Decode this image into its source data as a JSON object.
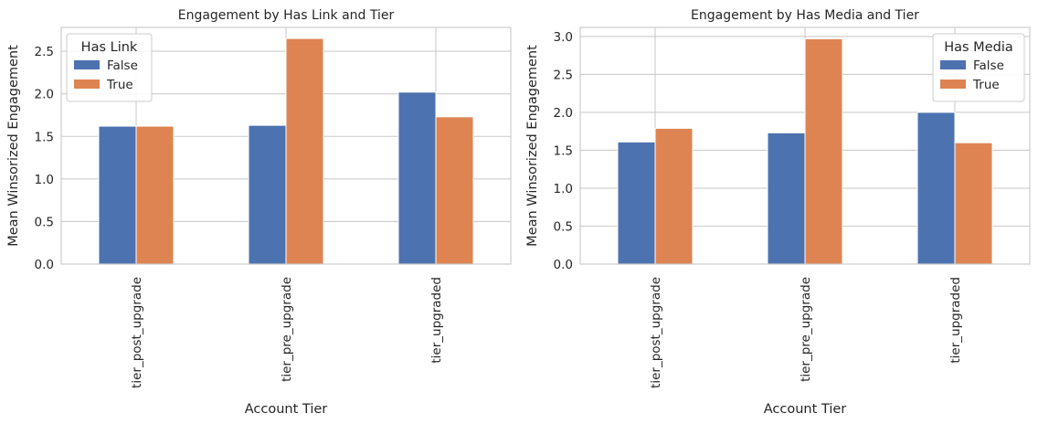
{
  "chart_data": [
    {
      "type": "bar",
      "title": "Engagement by Has Link and Tier",
      "xlabel": "Account Tier",
      "ylabel": "Mean Winsorized Engagement",
      "categories": [
        "tier_post_upgrade",
        "tier_pre_upgrade",
        "tier_upgraded"
      ],
      "ylim": [
        0,
        2.78
      ],
      "yticks": [
        "0.0",
        "0.5",
        "1.0",
        "1.5",
        "2.0",
        "2.5"
      ],
      "grid": true,
      "legend": {
        "title": "Has Link",
        "placement": "top-left"
      },
      "series": [
        {
          "name": "False",
          "color": "#4c72b0",
          "values": [
            1.62,
            1.63,
            2.02
          ]
        },
        {
          "name": "True",
          "color": "#dd8452",
          "values": [
            1.62,
            2.65,
            1.73
          ]
        }
      ]
    },
    {
      "type": "bar",
      "title": "Engagement by Has Media and Tier",
      "xlabel": "Account Tier",
      "ylabel": "Mean Winsorized Engagement",
      "categories": [
        "tier_post_upgrade",
        "tier_pre_upgrade",
        "tier_upgraded"
      ],
      "ylim": [
        0,
        3.12
      ],
      "yticks": [
        "0.0",
        "0.5",
        "1.0",
        "1.5",
        "2.0",
        "2.5",
        "3.0"
      ],
      "grid": true,
      "legend": {
        "title": "Has Media",
        "placement": "top-right"
      },
      "series": [
        {
          "name": "False",
          "color": "#4c72b0",
          "values": [
            1.61,
            1.73,
            2.0
          ]
        },
        {
          "name": "True",
          "color": "#dd8452",
          "values": [
            1.79,
            2.97,
            1.6
          ]
        }
      ]
    }
  ]
}
